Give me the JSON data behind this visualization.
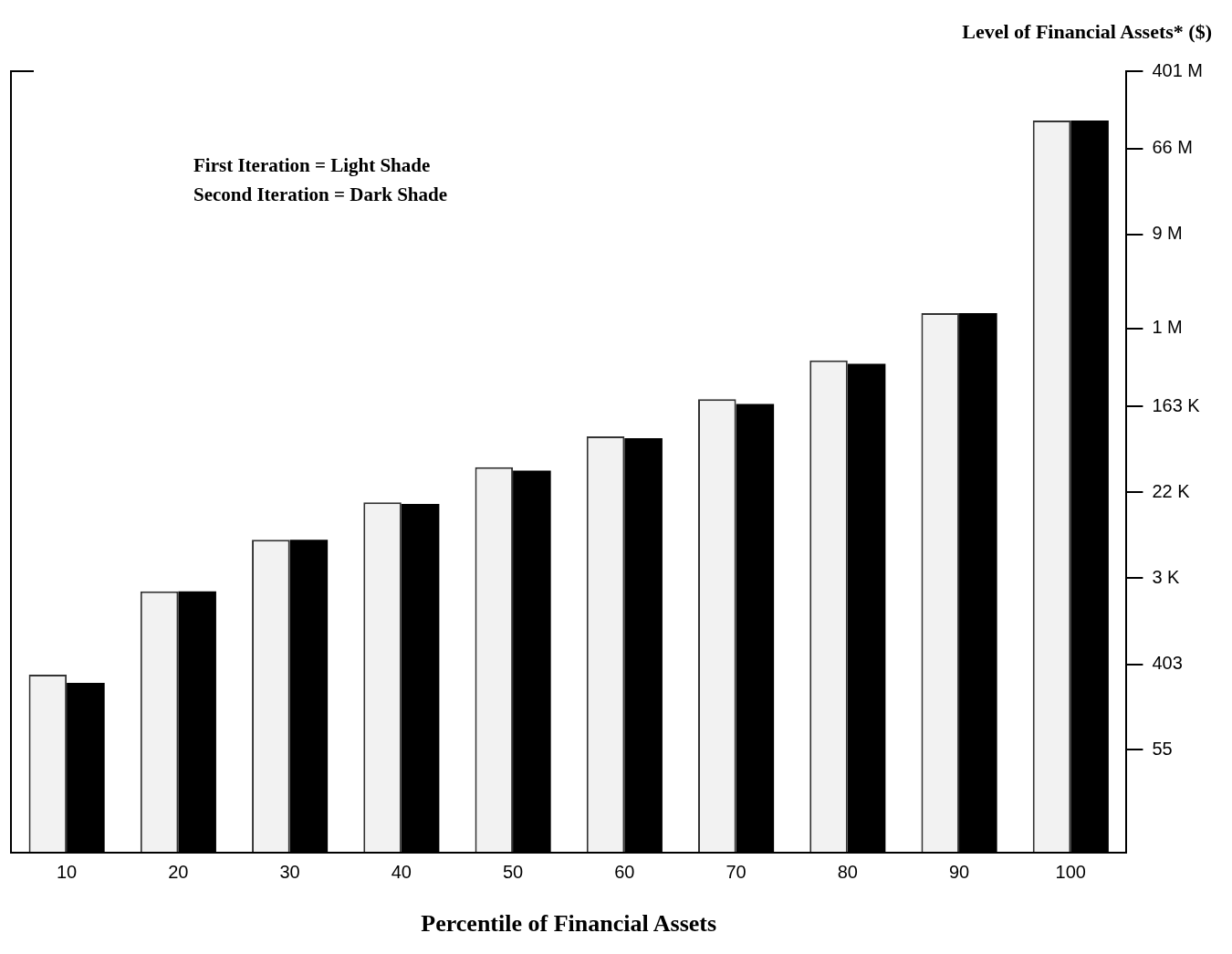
{
  "chart_data": {
    "type": "bar",
    "xlabel": "Percentile of Financial Assets",
    "ylabel": "Level of Financial Assets* ($)",
    "categories": [
      "10",
      "20",
      "30",
      "40",
      "50",
      "60",
      "70",
      "80",
      "90",
      "100"
    ],
    "series": [
      {
        "color": "#f2f2f2",
        "values": [
          316,
          2200,
          7300,
          17500,
          39700,
          81000,
          193000,
          478000,
          1430000,
          127000000
        ]
      },
      {
        "color": "#000000",
        "values": [
          261,
          2200,
          7300,
          16800,
          36500,
          78000,
          173000,
          440000,
          1430000,
          127000000
        ]
      }
    ],
    "log": "y",
    "ylim": [
      5,
      401000000
    ],
    "yticks": [
      {
        "value": 55,
        "label": "55"
      },
      {
        "value": 403,
        "label": "403"
      },
      {
        "value": 3000,
        "label": "3 K"
      },
      {
        "value": 22000,
        "label": "22 K"
      },
      {
        "value": 163000,
        "label": "163 K"
      },
      {
        "value": 1000000,
        "label": "1 M"
      },
      {
        "value": 9000000,
        "label": "9 M"
      },
      {
        "value": 66000000,
        "label": "66 M"
      },
      {
        "value": 401000000,
        "label": "401 M"
      }
    ],
    "annotations": [
      "First Iteration = Light Shade",
      "Second Iteration = Dark Shade"
    ],
    "grid": false,
    "legend": false
  }
}
